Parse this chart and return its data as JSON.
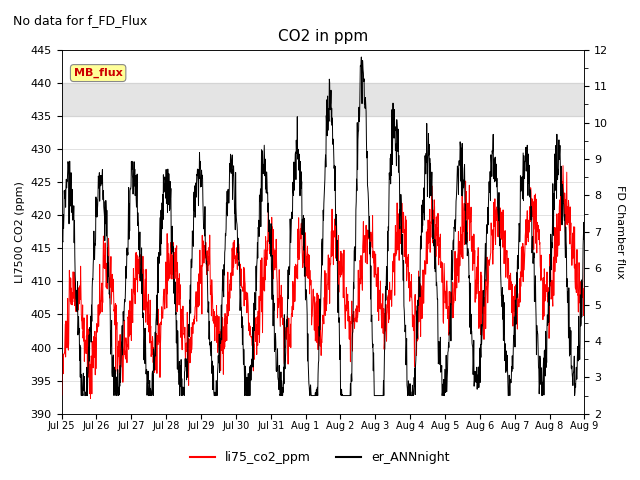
{
  "title": "CO2 in ppm",
  "subtitle": "No data for f_FD_Flux",
  "xlabel_ticks": [
    "Jul 25",
    "Jul 26",
    "Jul 27",
    "Jul 28",
    "Jul 29",
    "Jul 30",
    "Jul 31",
    "Aug 1",
    "Aug 2",
    "Aug 3",
    "Aug 4",
    "Aug 5",
    "Aug 6",
    "Aug 7",
    "Aug 8",
    "Aug 9"
  ],
  "ylabel_left": "LI7500 CO2 (ppm)",
  "ylabel_right": "FD Chamber flux",
  "ylim_left": [
    390,
    445
  ],
  "ylim_right": [
    2.0,
    12.0
  ],
  "yticks_left": [
    390,
    395,
    400,
    405,
    410,
    415,
    420,
    425,
    430,
    435,
    440,
    445
  ],
  "yticks_right": [
    2.0,
    3.0,
    4.0,
    5.0,
    6.0,
    7.0,
    8.0,
    9.0,
    10.0,
    11.0,
    12.0
  ],
  "shaded_region": [
    435,
    440
  ],
  "legend_label_red": "li75_co2_ppm",
  "legend_label_black": "er_ANNnight",
  "mb_flux_box_color": "#ffff99",
  "mb_flux_text_color": "#cc0000",
  "line_color_red": "#ff0000",
  "line_color_black": "#000000",
  "background_color": "#ffffff",
  "title_fontsize": 11,
  "subtitle_fontsize": 9,
  "axis_fontsize": 8,
  "tick_fontsize": 8,
  "legend_fontsize": 9,
  "figsize": [
    6.4,
    4.8
  ],
  "dpi": 100
}
